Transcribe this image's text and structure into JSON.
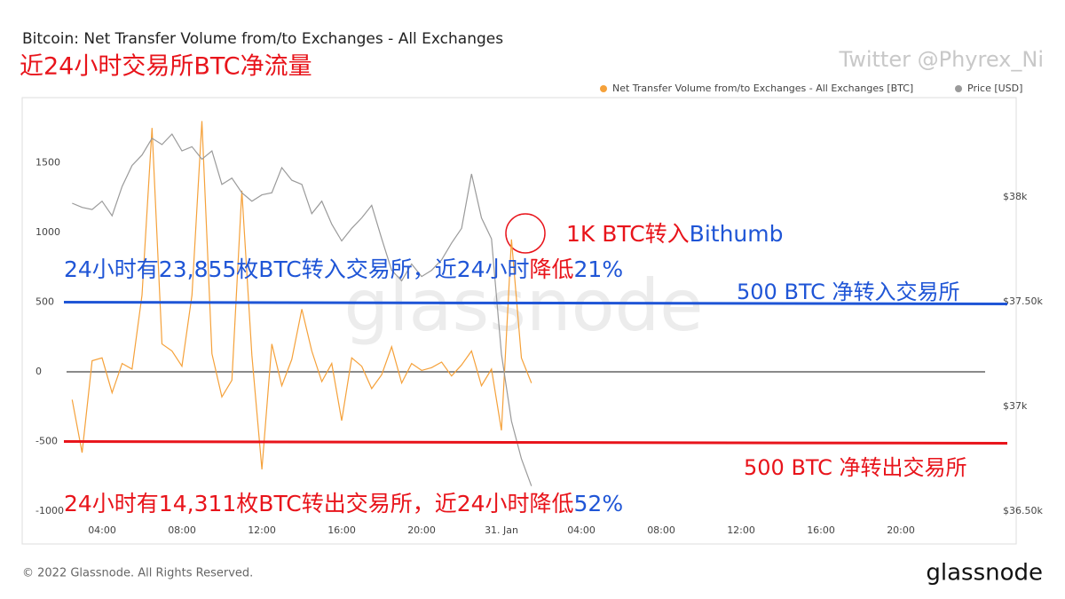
{
  "chart_data": {
    "type": "line",
    "title": "Bitcoin: Net Transfer Volume from/to Exchanges - All Exchanges",
    "subtitle": "近24小时交易所BTC净流量",
    "x": [
      2.5,
      3,
      3.5,
      4,
      4.5,
      5,
      5.5,
      6,
      6.5,
      7,
      7.5,
      8,
      8.5,
      9,
      9.5,
      10,
      10.5,
      11,
      11.5,
      12,
      12.5,
      13,
      13.5,
      14,
      14.5,
      15,
      15.5,
      16,
      16.5,
      17,
      17.5,
      18,
      18.5,
      19,
      19.5,
      20,
      20.5,
      21,
      21.5,
      22,
      22.5,
      23,
      23.5,
      24,
      24.5,
      25,
      25.5
    ],
    "series": [
      {
        "name": "Net Transfer Volume from/to Exchanges - All Exchanges [BTC]",
        "color": "#f5a13a",
        "values": [
          -200,
          -580,
          80,
          100,
          -150,
          60,
          20,
          550,
          1750,
          200,
          150,
          40,
          550,
          1800,
          130,
          -180,
          -60,
          1300,
          120,
          -700,
          200,
          -100,
          90,
          450,
          150,
          -70,
          60,
          -350,
          100,
          40,
          -120,
          -20,
          180,
          -80,
          60,
          10,
          30,
          70,
          -30,
          50,
          150,
          -100,
          20,
          -420,
          950,
          100,
          -80
        ]
      },
      {
        "name": "Price [USD]",
        "color": "#9a9a9a",
        "axis": "y2",
        "values": [
          37970,
          37950,
          37940,
          37980,
          37910,
          38050,
          38150,
          38200,
          38280,
          38250,
          38300,
          38220,
          38240,
          38180,
          38220,
          38060,
          38090,
          38020,
          37980,
          38010,
          38020,
          38140,
          38080,
          38060,
          37920,
          37980,
          37870,
          37790,
          37850,
          37900,
          37960,
          37800,
          37650,
          37600,
          37680,
          37620,
          37650,
          37700,
          37780,
          37850,
          38110,
          37900,
          37800,
          37250,
          36930,
          36750,
          36620
        ]
      }
    ],
    "xlim": [
      2.22,
      48.22
    ],
    "xticks": [
      {
        "value": 4,
        "label": "04:00"
      },
      {
        "value": 8,
        "label": "08:00"
      },
      {
        "value": 12,
        "label": "12:00"
      },
      {
        "value": 16,
        "label": "16:00"
      },
      {
        "value": 20,
        "label": "20:00"
      },
      {
        "value": 24,
        "label": "31. Jan"
      },
      {
        "value": 28,
        "label": "04:00"
      },
      {
        "value": 32,
        "label": "08:00"
      },
      {
        "value": 36,
        "label": "12:00"
      },
      {
        "value": 40,
        "label": "16:00"
      },
      {
        "value": 44,
        "label": "20:00"
      }
    ],
    "ylim": [
      -1057,
      1936
    ],
    "yticks": [
      -1000,
      -500,
      0,
      500,
      1000,
      1500
    ],
    "y2lim": [
      36462,
      38453
    ],
    "y2ticks": [
      {
        "value": 36500,
        "label": "$36.50k"
      },
      {
        "value": 37000,
        "label": "$37k"
      },
      {
        "value": 37500,
        "label": "$37.50k"
      },
      {
        "value": 38000,
        "label": "$38k"
      }
    ],
    "grid": false,
    "legend": "top-right",
    "reference_lines": [
      {
        "value": 500,
        "label": "500 BTC 净转入交易所",
        "color": "#1f55d6"
      },
      {
        "value": -500,
        "label": "500 BTC 净转出交易所",
        "color": "#e8141b"
      }
    ],
    "annotations": [
      {
        "parts": [
          {
            "text": "1K BTC转入",
            "color": "#e8141b"
          },
          {
            "text": "Bithumb",
            "color": "#1f55d6"
          }
        ]
      },
      {
        "parts": [
          {
            "text": "24小时有23,855枚BTC转入交易所，近24小时",
            "color": "#1f55d6"
          },
          {
            "text": "降低",
            "color": "#e8141b"
          },
          {
            "text": "21%",
            "color": "#1f55d6"
          }
        ]
      },
      {
        "parts": [
          {
            "text": "24小时有14,311枚BTC转出交易所，近24小时降低",
            "color": "#e8141b"
          },
          {
            "text": "52%",
            "color": "#1f55d6"
          }
        ]
      }
    ]
  },
  "watermark": "Twitter @Phyrex_Ni",
  "brand_watermark": "glassnode",
  "footer": {
    "copyright": "© 2022 Glassnode. All Rights Reserved.",
    "logo": "glassnode"
  }
}
